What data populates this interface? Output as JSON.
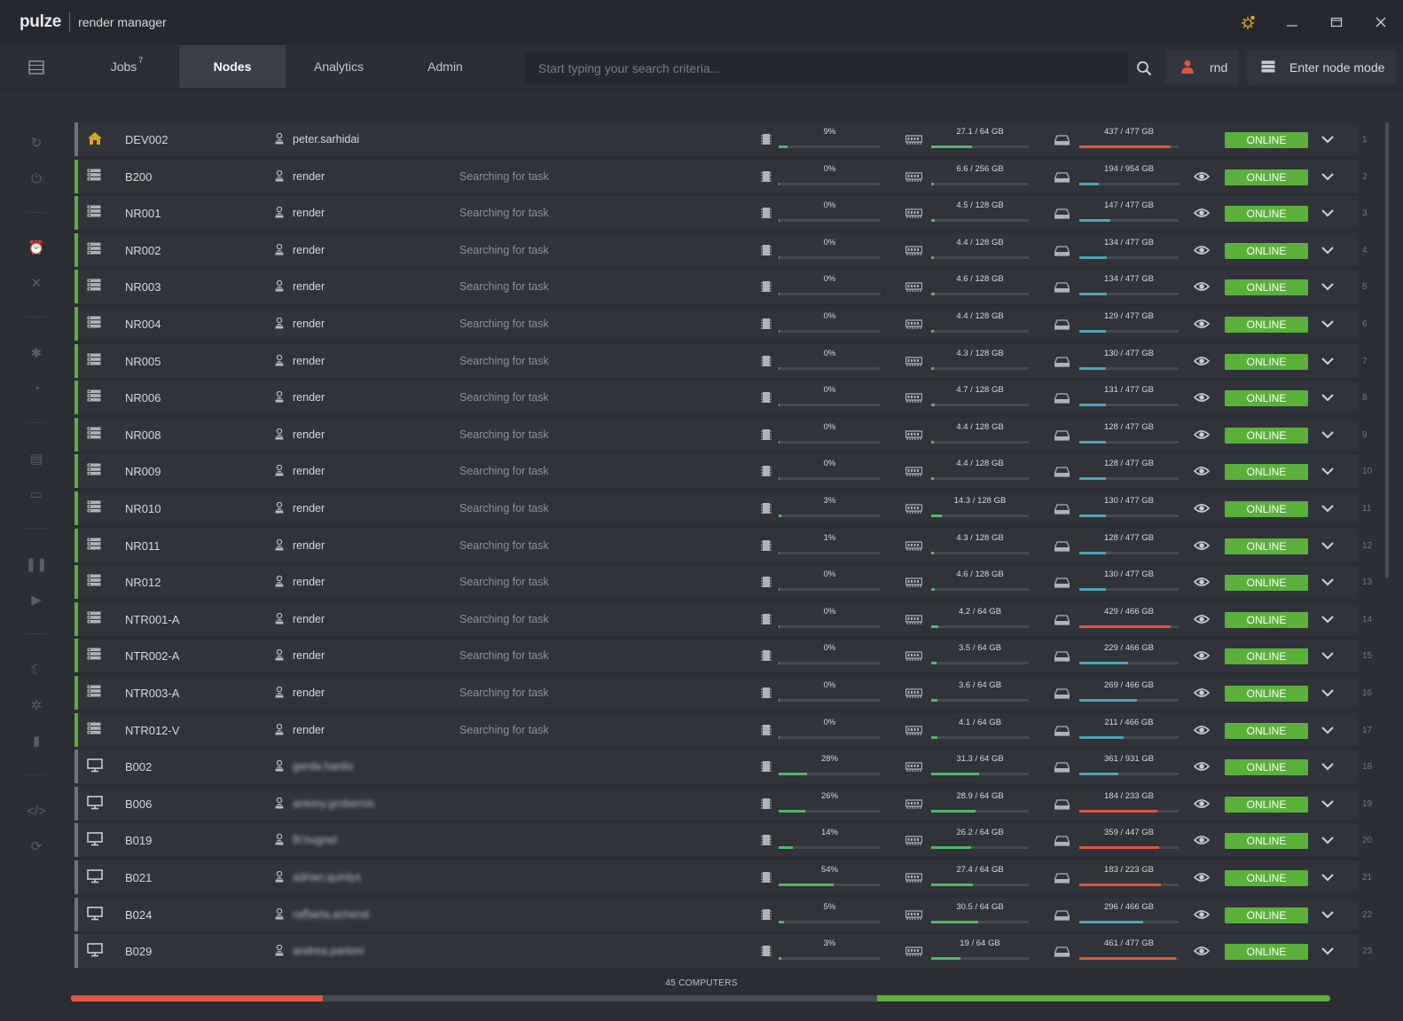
{
  "app": {
    "logo": "pulze",
    "name": "render manager"
  },
  "nav": {
    "tabs": [
      {
        "label": "Jobs",
        "badge": "7"
      },
      {
        "label": "Nodes",
        "badge": ""
      },
      {
        "label": "Analytics",
        "badge": ""
      },
      {
        "label": "Admin",
        "badge": ""
      }
    ],
    "active_tab": "Nodes",
    "search_placeholder": "Start typing your search criteria...",
    "user_label": "rnd",
    "node_mode_label": "Enter node mode"
  },
  "colors": {
    "online": "#5bb03c",
    "stripe_online": "#5bb03c",
    "stripe_local": "#6e7485",
    "bar_green": "#4fb86a",
    "bar_teal": "#4aa6b8",
    "bar_red": "#e0533d",
    "accent_gold": "#d9a520"
  },
  "nodes": [
    {
      "num": "1",
      "icon": "home-icon",
      "stripe": "local",
      "name": "DEV002",
      "user": "peter.sarhidai",
      "blurred": false,
      "status": "",
      "cpu_label": "9%",
      "cpu_pct": 9,
      "ram_label": "27.1 / 64 GB",
      "ram_pct": 42,
      "disk_label": "437 / 477 GB",
      "disk_pct": 92,
      "watch": false,
      "state": "ONLINE"
    },
    {
      "num": "2",
      "icon": "server-icon",
      "stripe": "online",
      "name": "B200",
      "user": "render",
      "blurred": false,
      "status": "Searching for task",
      "cpu_label": "0%",
      "cpu_pct": 0,
      "ram_label": "6.6 / 256 GB",
      "ram_pct": 3,
      "disk_label": "194 / 954 GB",
      "disk_pct": 20,
      "watch": true,
      "state": "ONLINE"
    },
    {
      "num": "3",
      "icon": "server-icon",
      "stripe": "online",
      "name": "NR001",
      "user": "render",
      "blurred": false,
      "status": "Searching for task",
      "cpu_label": "0%",
      "cpu_pct": 0,
      "ram_label": "4.5 / 128 GB",
      "ram_pct": 4,
      "disk_label": "147 / 477 GB",
      "disk_pct": 31,
      "watch": true,
      "state": "ONLINE"
    },
    {
      "num": "4",
      "icon": "server-icon",
      "stripe": "online",
      "name": "NR002",
      "user": "render",
      "blurred": false,
      "status": "Searching for task",
      "cpu_label": "0%",
      "cpu_pct": 0,
      "ram_label": "4.4 / 128 GB",
      "ram_pct": 3,
      "disk_label": "134 / 477 GB",
      "disk_pct": 28,
      "watch": true,
      "state": "ONLINE"
    },
    {
      "num": "5",
      "icon": "server-icon",
      "stripe": "online",
      "name": "NR003",
      "user": "render",
      "blurred": false,
      "status": "Searching for task",
      "cpu_label": "0%",
      "cpu_pct": 0,
      "ram_label": "4.6 / 128 GB",
      "ram_pct": 4,
      "disk_label": "134 / 477 GB",
      "disk_pct": 28,
      "watch": true,
      "state": "ONLINE"
    },
    {
      "num": "6",
      "icon": "server-icon",
      "stripe": "online",
      "name": "NR004",
      "user": "render",
      "blurred": false,
      "status": "Searching for task",
      "cpu_label": "0%",
      "cpu_pct": 0,
      "ram_label": "4.4 / 128 GB",
      "ram_pct": 3,
      "disk_label": "129 / 477 GB",
      "disk_pct": 27,
      "watch": true,
      "state": "ONLINE"
    },
    {
      "num": "7",
      "icon": "server-icon",
      "stripe": "online",
      "name": "NR005",
      "user": "render",
      "blurred": false,
      "status": "Searching for task",
      "cpu_label": "0%",
      "cpu_pct": 0,
      "ram_label": "4.3 / 128 GB",
      "ram_pct": 3,
      "disk_label": "130 / 477 GB",
      "disk_pct": 27,
      "watch": true,
      "state": "ONLINE"
    },
    {
      "num": "8",
      "icon": "server-icon",
      "stripe": "online",
      "name": "NR006",
      "user": "render",
      "blurred": false,
      "status": "Searching for task",
      "cpu_label": "0%",
      "cpu_pct": 0,
      "ram_label": "4.7 / 128 GB",
      "ram_pct": 4,
      "disk_label": "131 / 477 GB",
      "disk_pct": 27,
      "watch": true,
      "state": "ONLINE"
    },
    {
      "num": "9",
      "icon": "server-icon",
      "stripe": "online",
      "name": "NR008",
      "user": "render",
      "blurred": false,
      "status": "Searching for task",
      "cpu_label": "0%",
      "cpu_pct": 0,
      "ram_label": "4.4 / 128 GB",
      "ram_pct": 3,
      "disk_label": "128 / 477 GB",
      "disk_pct": 27,
      "watch": true,
      "state": "ONLINE"
    },
    {
      "num": "10",
      "icon": "server-icon",
      "stripe": "online",
      "name": "NR009",
      "user": "render",
      "blurred": false,
      "status": "Searching for task",
      "cpu_label": "0%",
      "cpu_pct": 0,
      "ram_label": "4.4 / 128 GB",
      "ram_pct": 3,
      "disk_label": "128 / 477 GB",
      "disk_pct": 27,
      "watch": true,
      "state": "ONLINE"
    },
    {
      "num": "11",
      "icon": "server-icon",
      "stripe": "online",
      "name": "NR010",
      "user": "render",
      "blurred": false,
      "status": "Searching for task",
      "cpu_label": "3%",
      "cpu_pct": 3,
      "ram_label": "14.3 / 128 GB",
      "ram_pct": 11,
      "disk_label": "130 / 477 GB",
      "disk_pct": 27,
      "watch": true,
      "state": "ONLINE"
    },
    {
      "num": "12",
      "icon": "server-icon",
      "stripe": "online",
      "name": "NR011",
      "user": "render",
      "blurred": false,
      "status": "Searching for task",
      "cpu_label": "1%",
      "cpu_pct": 1,
      "ram_label": "4.3 / 128 GB",
      "ram_pct": 3,
      "disk_label": "128 / 477 GB",
      "disk_pct": 27,
      "watch": true,
      "state": "ONLINE"
    },
    {
      "num": "13",
      "icon": "server-icon",
      "stripe": "online",
      "name": "NR012",
      "user": "render",
      "blurred": false,
      "status": "Searching for task",
      "cpu_label": "0%",
      "cpu_pct": 0,
      "ram_label": "4.6 / 128 GB",
      "ram_pct": 4,
      "disk_label": "130 / 477 GB",
      "disk_pct": 27,
      "watch": true,
      "state": "ONLINE"
    },
    {
      "num": "14",
      "icon": "server-icon",
      "stripe": "online",
      "name": "NTR001-A",
      "user": "render",
      "blurred": false,
      "status": "Searching for task",
      "cpu_label": "0%",
      "cpu_pct": 0,
      "ram_label": "4.2 / 64 GB",
      "ram_pct": 7,
      "disk_label": "429 / 466 GB",
      "disk_pct": 92,
      "watch": true,
      "state": "ONLINE"
    },
    {
      "num": "15",
      "icon": "server-icon",
      "stripe": "online",
      "name": "NTR002-A",
      "user": "render",
      "blurred": false,
      "status": "Searching for task",
      "cpu_label": "0%",
      "cpu_pct": 0,
      "ram_label": "3.5 / 64 GB",
      "ram_pct": 5,
      "disk_label": "229 / 466 GB",
      "disk_pct": 49,
      "watch": true,
      "state": "ONLINE"
    },
    {
      "num": "16",
      "icon": "server-icon",
      "stripe": "online",
      "name": "NTR003-A",
      "user": "render",
      "blurred": false,
      "status": "Searching for task",
      "cpu_label": "0%",
      "cpu_pct": 0,
      "ram_label": "3.6 / 64 GB",
      "ram_pct": 6,
      "disk_label": "269 / 466 GB",
      "disk_pct": 58,
      "watch": true,
      "state": "ONLINE"
    },
    {
      "num": "17",
      "icon": "server-icon",
      "stripe": "online",
      "name": "NTR012-V",
      "user": "render",
      "blurred": false,
      "status": "Searching for task",
      "cpu_label": "0%",
      "cpu_pct": 0,
      "ram_label": "4.1 / 64 GB",
      "ram_pct": 6,
      "disk_label": "211 / 466 GB",
      "disk_pct": 45,
      "watch": true,
      "state": "ONLINE"
    },
    {
      "num": "18",
      "icon": "monitor-icon",
      "stripe": "local",
      "name": "B002",
      "user": "gerda.hanlis",
      "blurred": true,
      "status": "",
      "cpu_label": "28%",
      "cpu_pct": 28,
      "ram_label": "31.3 / 64 GB",
      "ram_pct": 49,
      "disk_label": "361 / 931 GB",
      "disk_pct": 39,
      "watch": true,
      "state": "ONLINE"
    },
    {
      "num": "19",
      "icon": "monitor-icon",
      "stripe": "local",
      "name": "B006",
      "user": "antony.grobernis",
      "blurred": true,
      "status": "",
      "cpu_label": "26%",
      "cpu_pct": 26,
      "ram_label": "28.9 / 64 GB",
      "ram_pct": 45,
      "disk_label": "184 / 233 GB",
      "disk_pct": 79,
      "watch": true,
      "state": "ONLINE"
    },
    {
      "num": "20",
      "icon": "monitor-icon",
      "stripe": "local",
      "name": "B019",
      "user": "fil.hugnel",
      "blurred": true,
      "status": "",
      "cpu_label": "14%",
      "cpu_pct": 14,
      "ram_label": "26.2 / 64 GB",
      "ram_pct": 41,
      "disk_label": "359 / 447 GB",
      "disk_pct": 80,
      "watch": true,
      "state": "ONLINE"
    },
    {
      "num": "21",
      "icon": "monitor-icon",
      "stripe": "local",
      "name": "B021",
      "user": "adrian.quinlys",
      "blurred": true,
      "status": "",
      "cpu_label": "54%",
      "cpu_pct": 54,
      "ram_label": "27.4 / 64 GB",
      "ram_pct": 43,
      "disk_label": "183 / 223 GB",
      "disk_pct": 82,
      "watch": true,
      "state": "ONLINE"
    },
    {
      "num": "22",
      "icon": "monitor-icon",
      "stripe": "local",
      "name": "B024",
      "user": "raffaela.achend",
      "blurred": true,
      "status": "",
      "cpu_label": "5%",
      "cpu_pct": 5,
      "ram_label": "30.5 / 64 GB",
      "ram_pct": 48,
      "disk_label": "296 / 466 GB",
      "disk_pct": 64,
      "watch": true,
      "state": "ONLINE"
    },
    {
      "num": "23",
      "icon": "monitor-icon",
      "stripe": "local",
      "name": "B029",
      "user": "andrea.partoni",
      "blurred": true,
      "status": "",
      "cpu_label": "3%",
      "cpu_pct": 3,
      "ram_label": "19 / 64 GB",
      "ram_pct": 30,
      "disk_label": "461 / 477 GB",
      "disk_pct": 97,
      "watch": true,
      "state": "ONLINE"
    }
  ],
  "footer": {
    "label": "45 COMPUTERS",
    "segments": [
      {
        "color": "#e4593e",
        "share": 0.2
      },
      {
        "color": "#454a58",
        "share": 0.44
      },
      {
        "color": "#5bb03c",
        "share": 0.36
      }
    ]
  }
}
